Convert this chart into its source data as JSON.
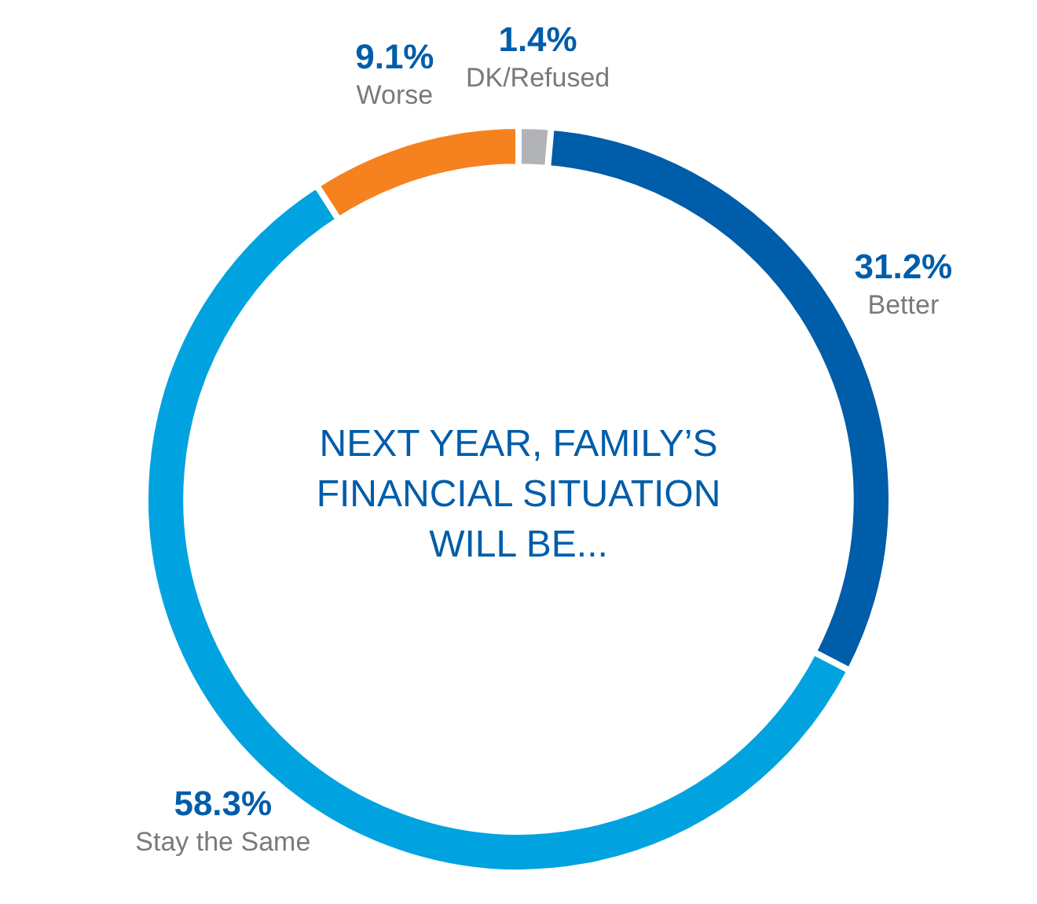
{
  "chart_data": {
    "type": "donut",
    "title": "NEXT YEAR, FAMILY’S FINANCIAL SITUATION WILL BE...",
    "categories": [
      "DK/Refused",
      "Better",
      "Stay the Same",
      "Worse"
    ],
    "values": [
      1.4,
      31.2,
      58.3,
      9.1
    ],
    "value_labels": [
      "1.4%",
      "31.2%",
      "58.3%",
      "9.1%"
    ],
    "colors": [
      "#b1b3b6",
      "#005daa",
      "#00a3e0",
      "#f5821f"
    ],
    "legend": false
  }
}
